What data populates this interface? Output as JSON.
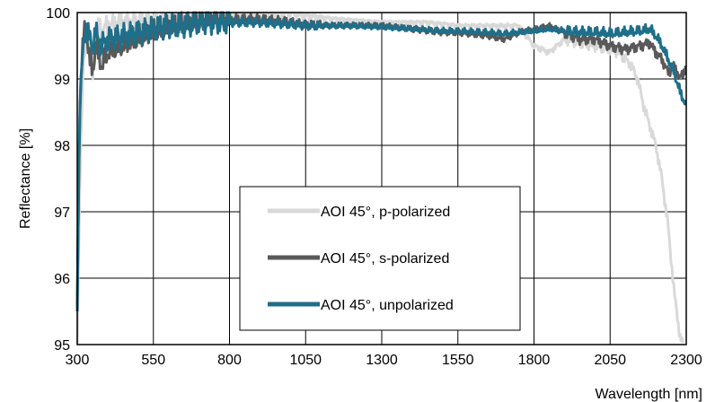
{
  "chart_data": {
    "type": "line",
    "title": "",
    "xlabel": "Wavelength [nm]",
    "ylabel": "Reflectance [%]",
    "xlim": [
      300,
      2300
    ],
    "ylim": [
      95,
      100
    ],
    "xticks": [
      "300",
      "550",
      "800",
      "1050",
      "1300",
      "1550",
      "1800",
      "2050",
      "2300"
    ],
    "yticks": [
      "95",
      "96",
      "97",
      "98",
      "99",
      "100"
    ],
    "grid": true,
    "legend_position": "bottom-center",
    "series": [
      {
        "name": "AOI 45°, p-polarized",
        "color": "#d9d9d9",
        "x": [
          300,
          310,
          320,
          330,
          340,
          350,
          360,
          370,
          380,
          400,
          450,
          500,
          550,
          600,
          700,
          800,
          900,
          1000,
          1050,
          1150,
          1300,
          1450,
          1550,
          1650,
          1750,
          1800,
          1850,
          1900,
          1950,
          2000,
          2050,
          2080,
          2100,
          2120,
          2140,
          2160,
          2180,
          2200,
          2220,
          2240,
          2260,
          2280,
          2290
        ],
        "y": [
          95.0,
          97.8,
          99.2,
          99.5,
          99.7,
          99.0,
          99.6,
          99.8,
          99.7,
          99.8,
          99.85,
          99.85,
          99.9,
          99.9,
          99.95,
          100.0,
          100.0,
          100.0,
          99.95,
          99.9,
          99.85,
          99.85,
          99.8,
          99.8,
          99.8,
          99.5,
          99.4,
          99.6,
          99.55,
          99.5,
          99.45,
          99.4,
          99.3,
          99.2,
          99.0,
          98.6,
          98.3,
          98.0,
          97.5,
          96.8,
          95.8,
          95.1,
          95.0
        ]
      },
      {
        "name": "AOI 45°, s-polarized",
        "color": "#595959",
        "x": [
          300,
          305,
          310,
          320,
          330,
          340,
          350,
          360,
          380,
          400,
          450,
          500,
          550,
          600,
          650,
          700,
          750,
          800,
          900,
          1000,
          1050,
          1200,
          1300,
          1400,
          1500,
          1550,
          1650,
          1700,
          1750,
          1800,
          1850,
          1900,
          1950,
          2000,
          2050,
          2100,
          2150,
          2180,
          2200,
          2220,
          2240,
          2260,
          2280,
          2300
        ],
        "y": [
          95.6,
          97.5,
          98.8,
          99.6,
          99.8,
          99.3,
          99.1,
          99.5,
          99.2,
          99.4,
          99.5,
          99.6,
          99.7,
          99.75,
          99.8,
          99.85,
          99.9,
          99.9,
          99.9,
          99.85,
          99.8,
          99.8,
          99.8,
          99.75,
          99.7,
          99.7,
          99.65,
          99.6,
          99.7,
          99.75,
          99.8,
          99.7,
          99.6,
          99.6,
          99.5,
          99.45,
          99.5,
          99.55,
          99.4,
          99.3,
          99.1,
          99.2,
          99.0,
          99.2
        ]
      },
      {
        "name": "AOI 45°, unpolarized",
        "color": "#1f6f8b",
        "x": [
          300,
          305,
          310,
          320,
          330,
          340,
          350,
          360,
          380,
          400,
          450,
          500,
          550,
          600,
          650,
          700,
          750,
          800,
          900,
          1000,
          1050,
          1200,
          1300,
          1400,
          1500,
          1550,
          1650,
          1700,
          1750,
          1800,
          1850,
          1900,
          1950,
          2000,
          2050,
          2100,
          2150,
          2180,
          2200,
          2220,
          2240,
          2260,
          2280,
          2300
        ],
        "y": [
          95.5,
          97.6,
          98.9,
          99.5,
          99.8,
          99.6,
          99.5,
          99.7,
          99.5,
          99.6,
          99.65,
          99.7,
          99.75,
          99.8,
          99.8,
          99.85,
          99.85,
          99.85,
          99.85,
          99.82,
          99.8,
          99.8,
          99.78,
          99.75,
          99.72,
          99.72,
          99.7,
          99.68,
          99.7,
          99.72,
          99.75,
          99.72,
          99.7,
          99.7,
          99.68,
          99.7,
          99.72,
          99.75,
          99.65,
          99.5,
          99.3,
          99.1,
          98.8,
          98.6
        ]
      }
    ]
  }
}
